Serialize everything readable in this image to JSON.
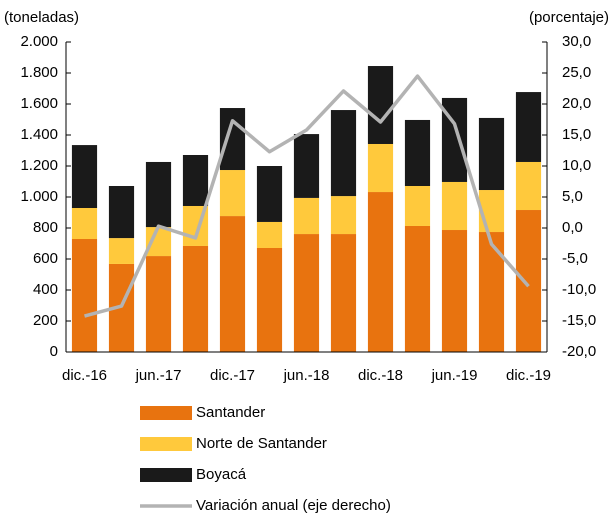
{
  "chart_data": {
    "type": "stacked_bar_line",
    "ylabel": "(toneladas)",
    "y2label": "(porcentaje)",
    "categories": [
      "dic.-16",
      null,
      "jun.-17",
      null,
      "dic.-17",
      null,
      "jun.-18",
      null,
      "dic.-18",
      null,
      "jun.-19",
      null,
      "dic.-19"
    ],
    "series": [
      {
        "name": "Santander",
        "color": "#e8730f",
        "values": [
          729,
          568,
          619,
          684,
          877,
          671,
          761,
          761,
          1032,
          813,
          787,
          774,
          916
        ]
      },
      {
        "name": "Norte de Santander",
        "color": "#ffc93c",
        "values": [
          200,
          167,
          187,
          258,
          297,
          168,
          233,
          245,
          310,
          258,
          310,
          271,
          310
        ]
      },
      {
        "name": "Boyacá",
        "color": "#1a1a1a",
        "values": [
          406,
          336,
          420,
          329,
          400,
          361,
          412,
          555,
          503,
          426,
          542,
          465,
          451
        ]
      },
      {
        "name": "Variación anual (eje derecho)",
        "color": "#b3b3b3",
        "axis": "y2",
        "type": "line",
        "values": [
          -14.2,
          -12.6,
          0.3,
          -1.6,
          17.3,
          12.3,
          15.8,
          22.1,
          17.1,
          24.5,
          16.8,
          -2.6,
          -9.4
        ]
      }
    ],
    "ylim": [
      0,
      2000
    ],
    "yticks": [
      0,
      200,
      400,
      600,
      800,
      {
        "value": 1000,
        "label": "1.000"
      },
      {
        "value": 1200,
        "label": "1.200"
      },
      {
        "value": 1400,
        "label": "1.400"
      },
      {
        "value": 1600,
        "label": "1.600"
      },
      {
        "value": 1800,
        "label": "1.800"
      },
      {
        "value": 2000,
        "label": "2.000"
      }
    ],
    "y2lim": [
      -20,
      30
    ],
    "y2ticks": [
      {
        "value": -20,
        "label": "-20,0"
      },
      {
        "value": -15,
        "label": "-15,0"
      },
      {
        "value": -10,
        "label": "-10,0"
      },
      {
        "value": -5,
        "label": "-5,0"
      },
      {
        "value": 0,
        "label": "0,0"
      },
      {
        "value": 5,
        "label": "5,0"
      },
      {
        "value": 10,
        "label": "10,0"
      },
      {
        "value": 15,
        "label": "15,0"
      },
      {
        "value": 20,
        "label": "20,0"
      },
      {
        "value": 25,
        "label": "25,0"
      },
      {
        "value": 30,
        "label": "30,0"
      }
    ],
    "legend": "bottom"
  }
}
